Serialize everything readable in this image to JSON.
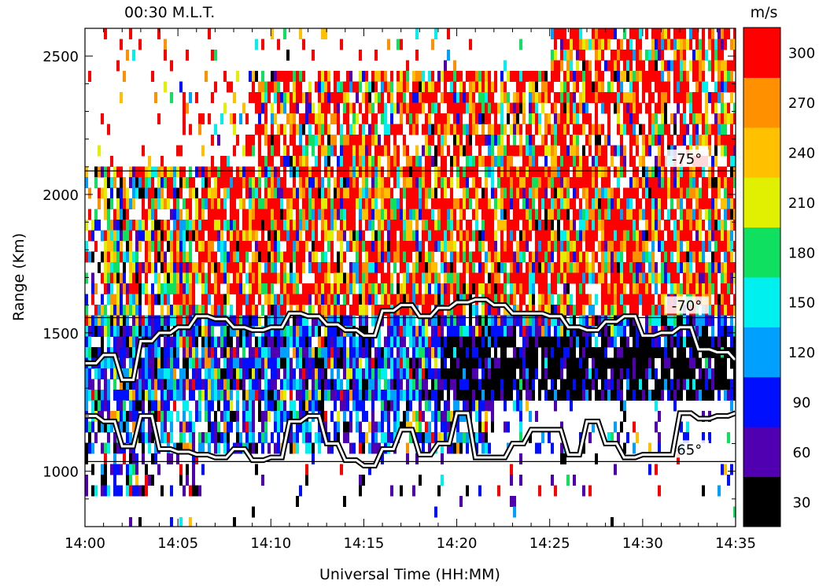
{
  "header": {
    "mlt_label": "00:30 M.L.T."
  },
  "colorbar": {
    "unit": "m/s"
  },
  "chart_data": {
    "type": "heatmap",
    "title": "",
    "xlabel": "Universal Time (HH:MM)",
    "ylabel": "Range (Km)",
    "x_ticks": [
      "14:00",
      "14:05",
      "14:10",
      "14:15",
      "14:20",
      "14:25",
      "14:30",
      "14:35"
    ],
    "x_range_minutes": [
      0,
      35
    ],
    "y_ticks": [
      1000,
      1500,
      2000,
      2500
    ],
    "ylim": [
      800,
      2600
    ],
    "color_scale": {
      "unit": "m/s",
      "levels": [
        30,
        60,
        90,
        120,
        150,
        180,
        210,
        240,
        270,
        300
      ],
      "colors": [
        "#000000",
        "#5000b0",
        "#0010ff",
        "#00a0ff",
        "#00f0f0",
        "#10e060",
        "#e0f000",
        "#ffc000",
        "#ff9000",
        "#ff0000"
      ]
    },
    "latitude_contours": [
      {
        "label": "-75°",
        "range_km": 2085
      },
      {
        "label": "-70°",
        "range_km": 1555
      },
      {
        "label": "-65°",
        "range_km": 1035
      }
    ],
    "velocity_regions": [
      {
        "range_km": [
          1580,
          2450
        ],
        "time_min": [
          8,
          35
        ],
        "typical_velocity_ms": 300,
        "description": "high-velocity band"
      },
      {
        "range_km": [
          1250,
          1550
        ],
        "time_min": [
          20,
          35
        ],
        "typical_velocity_ms": 30
      },
      {
        "range_km": [
          1050,
          1550
        ],
        "time_min": [
          0,
          20
        ],
        "typical_velocity_ms": 90
      }
    ],
    "trace_lines": [
      {
        "name": "",
        "x": [
          0,
          1,
          2,
          3,
          4,
          5,
          6,
          7,
          8,
          9,
          10,
          11,
          12,
          13,
          14,
          15,
          16,
          17,
          18,
          19,
          20,
          21,
          22,
          23,
          24,
          25,
          26,
          27,
          28,
          29,
          30,
          31,
          32,
          33,
          34,
          35
        ],
        "y": [
          1390,
          1420,
          1330,
          1470,
          1500,
          1520,
          1560,
          1550,
          1520,
          1510,
          1520,
          1570,
          1560,
          1530,
          1510,
          1490,
          1580,
          1600,
          1560,
          1590,
          1610,
          1620,
          1600,
          1570,
          1570,
          1560,
          1520,
          1510,
          1540,
          1560,
          1490,
          1500,
          1520,
          1440,
          1430,
          1400
        ]
      },
      {
        "name": "",
        "x": [
          0,
          1,
          2,
          3,
          4,
          5,
          6,
          7,
          8,
          9,
          10,
          11,
          12,
          13,
          14,
          15,
          16,
          17,
          18,
          19,
          20,
          21,
          22,
          23,
          24,
          25,
          26,
          27,
          28,
          29,
          30,
          31,
          32,
          33,
          34,
          35
        ],
        "y": [
          1200,
          1180,
          1090,
          1200,
          1080,
          1070,
          1060,
          1050,
          1080,
          1040,
          1050,
          1180,
          1200,
          1100,
          1040,
          1020,
          1080,
          1150,
          1060,
          1100,
          1210,
          1050,
          1050,
          1100,
          1150,
          1150,
          1060,
          1180,
          1100,
          1050,
          1060,
          1060,
          1210,
          1190,
          1200,
          1210
        ]
      }
    ]
  }
}
